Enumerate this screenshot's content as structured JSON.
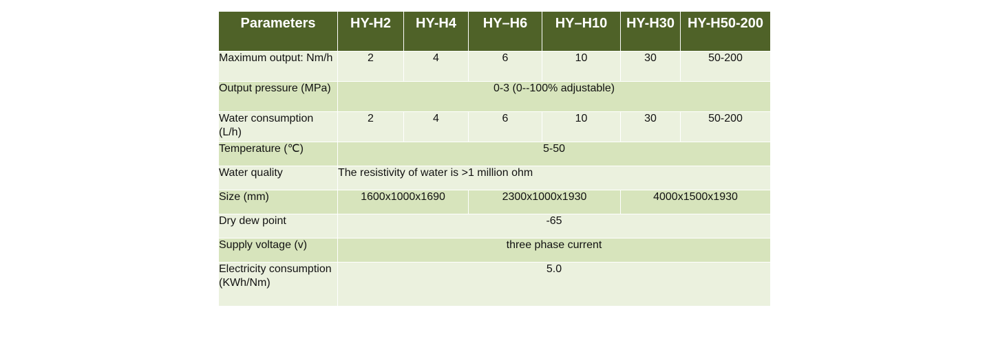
{
  "header": [
    "Parameters",
    "HY-H2",
    "HY-H4",
    "HY–H6",
    "HY–H10",
    "HY-H30",
    "HY-H50-200"
  ],
  "rows": {
    "max_output": {
      "label": "Maximum output: Nm/h",
      "values": [
        "2",
        "4",
        "6",
        "10",
        "30",
        "50-200"
      ]
    },
    "output_pressure": {
      "label": "Output pressure (MPa)",
      "value": "0-3 (0--100% adjustable)"
    },
    "water_consumption": {
      "label": "Water consumption (L/h)",
      "values": [
        "2",
        "4",
        "6",
        "10",
        "30",
        "50-200"
      ]
    },
    "temperature": {
      "label": "Temperature (℃)",
      "value": "5-50"
    },
    "water_quality": {
      "label": "Water quality",
      "value": "The resistivity of water is >1 million ohm"
    },
    "size": {
      "label": "Size (mm)",
      "values": [
        "1600x1000x1690",
        "2300x1000x1930",
        "4000x1500x1930"
      ]
    },
    "dew_point": {
      "label": "Dry dew point",
      "value": "-65"
    },
    "supply_voltage": {
      "label": "Supply voltage (v)",
      "value": "three phase current"
    },
    "electricity": {
      "label": "Electricity consumption (KWh/Nm)",
      "value": "5.0"
    }
  },
  "colors": {
    "header_bg": "#4f6228",
    "row_light": "#ebf1de",
    "row_dark": "#d7e4bc"
  }
}
